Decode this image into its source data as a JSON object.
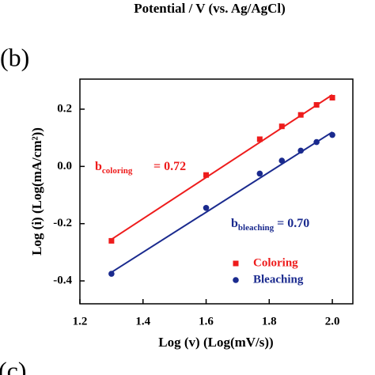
{
  "header": {
    "text": "Potential / V (vs. Ag/AgCl)"
  },
  "panel_labels": [
    "(b)",
    "(c)"
  ],
  "chart_data": {
    "type": "scatter",
    "x_label": "Log (v) (Log(mV/s))",
    "y_label": "Log (i) (Log(mA/cm²))",
    "x": [
      1.3,
      1.6,
      1.77,
      1.84,
      1.9,
      1.95,
      2.0
    ],
    "series": [
      {
        "name": "Coloring",
        "color": "#ee1c1c",
        "marker": "square",
        "values": [
          -0.26,
          -0.03,
          0.095,
          0.14,
          0.18,
          0.215,
          0.24
        ]
      },
      {
        "name": "Bleaching",
        "color": "#1a2a8e",
        "marker": "circle",
        "values": [
          -0.375,
          -0.145,
          -0.025,
          0.02,
          0.055,
          0.085,
          0.11
        ]
      }
    ],
    "fits": [
      {
        "color": "#ee1c1c",
        "x": [
          1.3,
          2.0
        ],
        "y": [
          -0.255,
          0.25
        ]
      },
      {
        "color": "#1a2a8e",
        "x": [
          1.3,
          2.0
        ],
        "y": [
          -0.37,
          0.12
        ]
      }
    ],
    "annotations": [
      {
        "base": "b",
        "sub": "coloring",
        "text": "= 0.72",
        "color": "#ee1c1c"
      },
      {
        "base": "b",
        "sub": "bleaching",
        "text": "= 0.70",
        "color": "#1a2a8e"
      }
    ],
    "xlim": [
      1.2,
      2.065
    ],
    "ylim": [
      -0.48,
      0.305
    ],
    "xticks": [
      {
        "value": 1.2,
        "label": "1.2"
      },
      {
        "value": 1.4,
        "label": "1.4"
      },
      {
        "value": 1.6,
        "label": "1.6"
      },
      {
        "value": 1.8,
        "label": "1.8"
      },
      {
        "value": 2.0,
        "label": "2.0"
      }
    ],
    "yticks": [
      {
        "value": -0.4,
        "label": "-0.4"
      },
      {
        "value": -0.2,
        "label": "-0.2"
      },
      {
        "value": 0.0,
        "label": "0.0"
      },
      {
        "value": 0.2,
        "label": "0.2"
      }
    ],
    "legend": "lower right"
  }
}
